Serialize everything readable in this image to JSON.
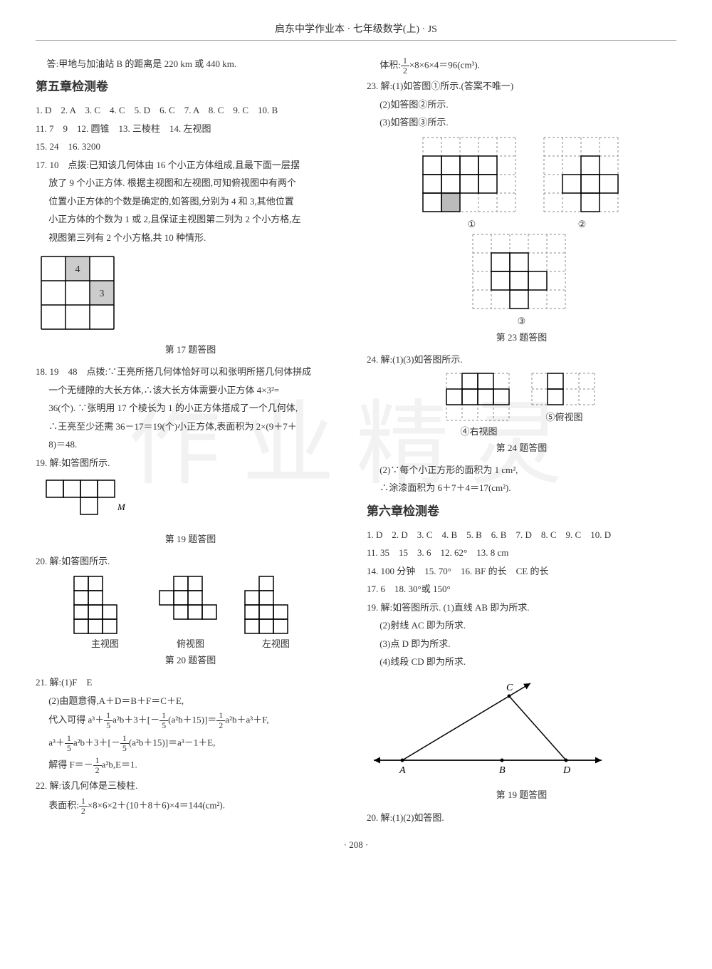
{
  "header": "启东中学作业本 · 七年级数学(上) · JS",
  "watermark": "作业精灵",
  "page_number": "· 208 ·",
  "left": {
    "pre_text": "答:甲地与加油站 B 的距离是 220 km 或 440 km.",
    "section5_title": "第五章检测卷",
    "line1": "1. D　2. A　3. C　4. C　5. D　6. C　7. A　8. C　9. C　10. B",
    "line2": "11. 7　9　12. 圆锥　13. 三棱柱　14. 左视图",
    "line3": "15. 24　16. 3200",
    "q17": {
      "lead": "17. 10　点拨:已知该几何体由 16 个小正方体组成,且最下面一层摆",
      "l2": "放了 9 个小正方体. 根据主视图和左视图,可知俯视图中有两个",
      "l3": "位置小正方体的个数是确定的,如答图,分别为 4 和 3,其他位置",
      "l4": "小正方体的个数为 1 或 2,且保证主视图第二列为 2 个小方格,左",
      "l5": "视图第三列有 2 个小方格,共 10 种情形.",
      "grid": {
        "size": 3,
        "cell": 34,
        "shaded": [
          [
            0,
            1
          ],
          [
            1,
            2
          ]
        ],
        "labels": [
          {
            "r": 0,
            "c": 1,
            "t": "4"
          },
          {
            "r": 1,
            "c": 2,
            "t": "3"
          }
        ]
      },
      "caption": "第 17 题答图"
    },
    "q18": {
      "lead": "18. 19　48　点拨:∵王亮所搭几何体恰好可以和张明所搭几何体拼成",
      "l2": "一个无缝隙的大长方体,∴该大长方体需要小正方体 4×3²=",
      "l3": "36(个). ∵张明用 17 个棱长为 1 的小正方体搭成了一个几何体,",
      "l4": "∴王亮至少还需 36－17＝19(个)小正方体,表面积为 2×(9＋7＋",
      "l5": "8)＝48."
    },
    "q19": {
      "lead": "19. 解:如答图所示.",
      "label_M": "M",
      "caption": "第 19 题答图"
    },
    "q20": {
      "lead": "20. 解:如答图所示.",
      "label1": "主视图",
      "label2": "俯视图",
      "label3": "左视图",
      "caption": "第 20 题答图"
    },
    "q21": {
      "l1": "21. 解:(1)F　E",
      "l2": "(2)由题意得,A＋D＝B＋F＝C＋E,",
      "l3a": "代入可得 a³＋",
      "l3b": "a²b＋3＋",
      "l3c": "(a²b＋15)",
      "l3d": "a²b＋a³＋F,",
      "l4a": "a³＋",
      "l4b": "a²b＋3＋",
      "l4c": "(a²b＋15)",
      "l4d": "＝a³－1＋E,",
      "l5a": "解得 F＝－",
      "l5b": "a²b,E＝1."
    },
    "q22": {
      "l1": "22. 解:该几何体是三棱柱.",
      "l2a": "表面积:",
      "l2b": "×8×6×2＋(10＋8＋6)×4＝144(cm²)."
    }
  },
  "right": {
    "vol_a": "体积:",
    "vol_b": "×8×6×4＝96(cm³).",
    "q23": {
      "l1": "23. 解:(1)如答图①所示.(答案不唯一)",
      "l2": "(2)如答图②所示.",
      "l3": "(3)如答图③所示.",
      "fig1_grid": {
        "dash_rows": 4,
        "dash_cols": 5,
        "cell": 26,
        "solid": [
          [
            1,
            0
          ],
          [
            1,
            1
          ],
          [
            1,
            2
          ],
          [
            1,
            3
          ],
          [
            2,
            0
          ],
          [
            2,
            1
          ],
          [
            2,
            2
          ],
          [
            2,
            3
          ],
          [
            3,
            0
          ],
          [
            3,
            1
          ]
        ],
        "shaded": [
          [
            3,
            1
          ]
        ]
      },
      "fig2_grid": {
        "dash_rows": 4,
        "dash_cols": 4,
        "cell": 26,
        "solid": [
          [
            1,
            2
          ],
          [
            2,
            1
          ],
          [
            2,
            2
          ],
          [
            2,
            3
          ],
          [
            3,
            2
          ]
        ]
      },
      "fig3_grid": {
        "dash_rows": 4,
        "dash_cols": 5,
        "cell": 26,
        "solid": [
          [
            1,
            1
          ],
          [
            1,
            2
          ],
          [
            2,
            1
          ],
          [
            2,
            2
          ],
          [
            2,
            3
          ],
          [
            3,
            2
          ]
        ]
      },
      "label1": "①",
      "label2": "②",
      "label3": "③",
      "caption": "第 23 题答图"
    },
    "q24": {
      "l1": "24. 解:(1)(3)如答图所示.",
      "fig4_grid": {
        "dash_rows": 3,
        "dash_cols": 4,
        "cell": 22,
        "solid": [
          [
            0,
            1
          ],
          [
            0,
            2
          ],
          [
            1,
            0
          ],
          [
            1,
            1
          ],
          [
            1,
            2
          ],
          [
            1,
            3
          ]
        ]
      },
      "fig5_grid": {
        "dash_rows": 2,
        "dash_cols": 4,
        "cell": 22,
        "solid": [
          [
            0,
            1
          ],
          [
            1,
            1
          ]
        ]
      },
      "label4": "④右视图",
      "label5": "⑤俯视图",
      "caption": "第 24 题答图",
      "l2": "(2)∵每个小正方形的面积为 1 cm²,",
      "l3": "∴涂漆面积为 6＋7＋4＝17(cm²)."
    },
    "section6_title": "第六章检测卷",
    "c6_line1": "1. D　2. D　3. C　4. B　5. B　6. B　7. D　8. C　9. C　10. D",
    "c6_line2": "11. 35　15　3. 6　12. 62°　13. 8 cm",
    "c6_line3": "14. 100 分钟　15. 70°　16. BF 的长　CE 的长",
    "c6_line4": "17. 6　18. 30°或 150°",
    "q19r": {
      "l1": "19. 解:如答图所示. (1)直线 AB 即为所求.",
      "l2": "(2)射线 AC 即为所求.",
      "l3": "(3)点 D 即为所求.",
      "l4": "(4)线段 CD 即为所求.",
      "points": {
        "A": "A",
        "B": "B",
        "C": "C",
        "D": "D"
      },
      "caption": "第 19 题答图"
    },
    "q20r": "20. 解:(1)(2)如答图."
  }
}
